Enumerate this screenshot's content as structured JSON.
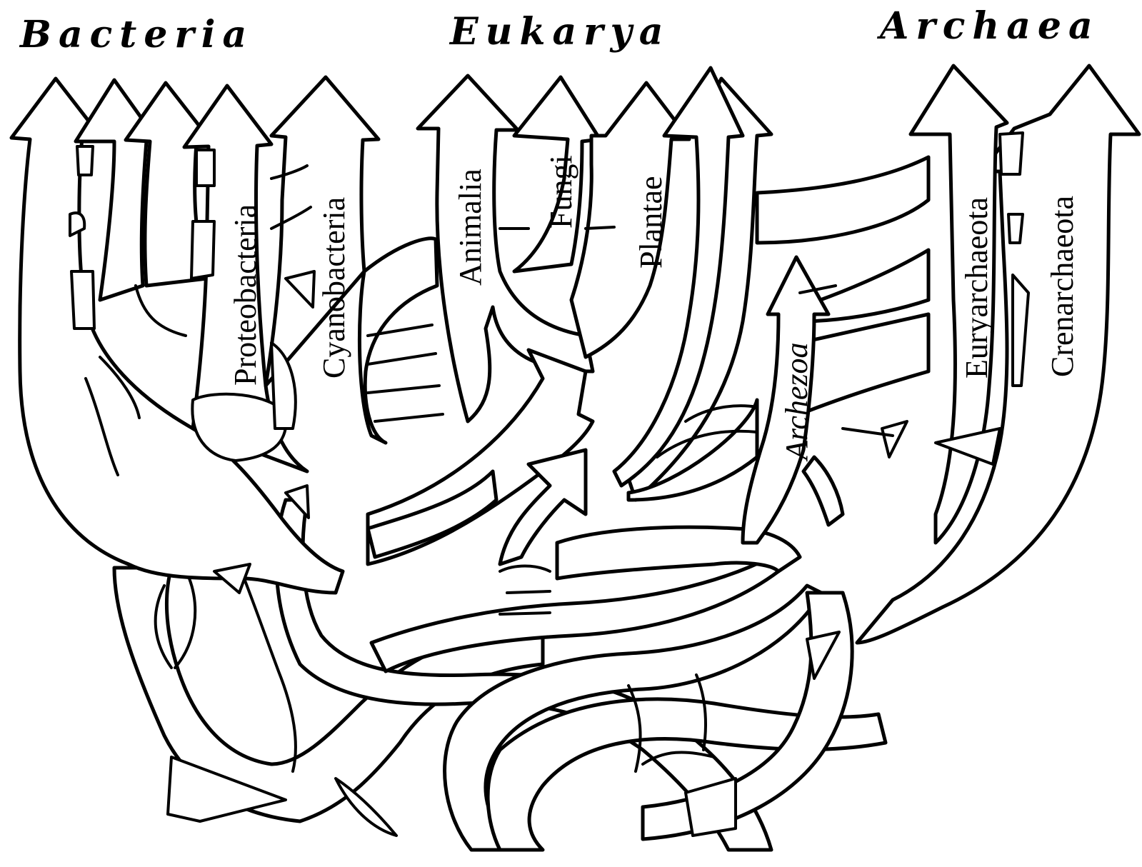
{
  "domains": {
    "bacteria": "Bacteria",
    "eukarya": "Eukarya",
    "archaea": "Archaea"
  },
  "groups": {
    "proteobacteria": "Proteobacteria",
    "cyanobacteria": "Cyanobacteria",
    "animalia": "Animalia",
    "fungi": "Fungi",
    "plantae": "Plantae",
    "archezoa": "Archezoa",
    "euryarchaeota": "Euryarchaeota",
    "crenarchaeota": "Crenarchaeota"
  }
}
